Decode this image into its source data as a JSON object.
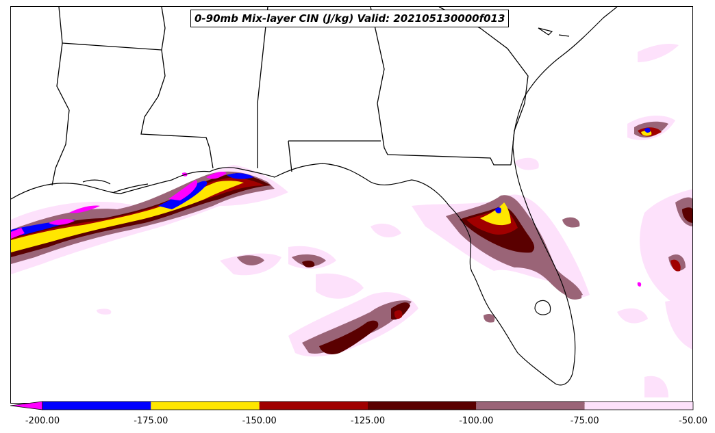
{
  "title": "0-90mb Mix-layer CIN (J/kg) Valid: 202105130000f013",
  "colorbar": {
    "extend_color": "#ff00ff",
    "segments": [
      {
        "from": -200,
        "to": -175,
        "color": "#0000ff"
      },
      {
        "from": -175,
        "to": -150,
        "color": "#ffe600"
      },
      {
        "from": -150,
        "to": -125,
        "color": "#a00000"
      },
      {
        "from": -125,
        "to": -100,
        "color": "#5a0000"
      },
      {
        "from": -100,
        "to": -75,
        "color": "#9a6477"
      },
      {
        "from": -75,
        "to": -50,
        "color": "#fde1fb"
      }
    ],
    "tick_labels": [
      "-200.00",
      "-175.00",
      "-150.00",
      "-125.00",
      "-100.00",
      "-75.00",
      "-50.00"
    ]
  },
  "colors": {
    "outline": "#000000",
    "light_pink": "#fde1fb",
    "mauve": "#9a6477",
    "dark_red": "#5a0000",
    "red": "#a00000",
    "yellow": "#ffe600",
    "blue": "#0000ff",
    "magenta": "#ff00ff"
  }
}
